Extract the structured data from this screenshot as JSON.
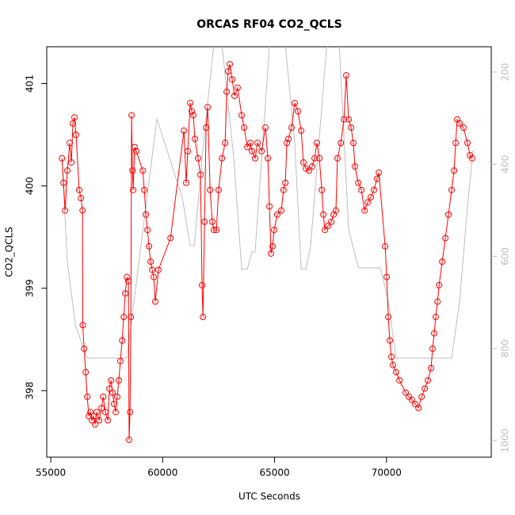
{
  "chart_data": {
    "type": "scatter",
    "title": "ORCAS RF04 CO2_QCLS",
    "xlabel": "UTC Seconds",
    "ylabel": "CO2_QCLS",
    "xlim": [
      54820,
      74680
    ],
    "ylim": [
      397.35,
      401.36
    ],
    "y2lim": [
      1036,
      145
    ],
    "xticks": [
      55000,
      60000,
      65000,
      70000
    ],
    "yticks": [
      398,
      399,
      400,
      401
    ],
    "y2ticks": [
      200,
      400,
      600,
      800,
      1000
    ],
    "series": [
      {
        "color": "#ff0000",
        "axis": "y",
        "x": [
          55500,
          55570,
          55640,
          55740,
          55850,
          55920,
          55990,
          56060,
          56130,
          56270,
          56350,
          56420,
          56430,
          56490,
          56560,
          56630,
          56700,
          56770,
          56840,
          56910,
          56980,
          57050,
          57160,
          57270,
          57340,
          57440,
          57550,
          57620,
          57690,
          57760,
          57830,
          57900,
          57970,
          58040,
          58110,
          58190,
          58260,
          58330,
          58400,
          58470,
          58500,
          58540,
          58580,
          58610,
          58650,
          58680,
          58750,
          58820,
          59110,
          59180,
          59250,
          59320,
          59390,
          59460,
          59530,
          59600,
          59670,
          59810,
          60350,
          60950,
          61050,
          61120,
          61230,
          61300,
          61370,
          61440,
          61580,
          61690,
          61760,
          61800,
          61870,
          61940,
          62010,
          62120,
          62220,
          62290,
          62400,
          62500,
          62650,
          62790,
          62860,
          62930,
          63000,
          63110,
          63210,
          63350,
          63530,
          63640,
          63780,
          63920,
          63990,
          64130,
          64240,
          64420,
          64590,
          64700,
          64770,
          64840,
          64910,
          64980,
          65120,
          65300,
          65400,
          65480,
          65550,
          65620,
          65760,
          65900,
          66040,
          66190,
          66290,
          66400,
          66540,
          66680,
          66790,
          66890,
          67000,
          67110,
          67180,
          67250,
          67390,
          67530,
          67640,
          67740,
          67810,
          67960,
          68100,
          68200,
          68310,
          68420,
          68520,
          68590,
          68740,
          68880,
          69020,
          69160,
          69300,
          69440,
          69580,
          69660,
          69940,
          70010,
          70080,
          70150,
          70220,
          70290,
          70430,
          70580,
          70860,
          71000,
          71140,
          71280,
          71430,
          71570,
          71710,
          71850,
          71990,
          72060,
          72130,
          72200,
          72280,
          72350,
          72490,
          72630,
          72770,
          72910,
          73020,
          73090,
          73160,
          73270,
          73440,
          73620,
          73730,
          73830
        ],
        "values": [
          400.27,
          400.03,
          399.76,
          400.15,
          400.42,
          400.23,
          400.61,
          400.67,
          400.5,
          399.96,
          399.88,
          399.76,
          398.64,
          398.41,
          398.18,
          397.94,
          397.75,
          397.79,
          397.71,
          397.75,
          397.67,
          397.79,
          397.71,
          397.83,
          397.94,
          397.79,
          397.71,
          398.02,
          398.1,
          397.98,
          397.87,
          397.79,
          397.94,
          398.1,
          398.29,
          398.49,
          398.72,
          398.95,
          399.11,
          399.07,
          397.52,
          397.79,
          398.72,
          400.69,
          400.15,
          399.96,
          400.38,
          400.34,
          400.15,
          399.96,
          399.72,
          399.57,
          399.41,
          399.26,
          399.18,
          399.11,
          398.87,
          399.18,
          399.49,
          400.54,
          400.03,
          400.34,
          400.81,
          400.73,
          400.69,
          400.46,
          400.27,
          400.11,
          399.03,
          398.72,
          399.65,
          400.57,
          400.77,
          399.96,
          399.65,
          399.57,
          399.57,
          399.96,
          400.27,
          400.42,
          400.92,
          401.12,
          401.19,
          401.04,
          400.88,
          400.96,
          400.69,
          400.57,
          400.38,
          400.42,
          400.34,
          400.27,
          400.42,
          400.34,
          400.57,
          400.27,
          399.8,
          399.34,
          399.41,
          399.57,
          399.72,
          399.76,
          399.96,
          400.03,
          400.42,
          400.46,
          400.57,
          400.81,
          400.73,
          400.54,
          400.23,
          400.17,
          400.15,
          400.19,
          400.27,
          400.42,
          400.27,
          399.96,
          399.72,
          399.57,
          399.61,
          399.65,
          399.72,
          399.76,
          400.27,
          400.42,
          400.65,
          401.08,
          400.65,
          400.57,
          400.42,
          400.19,
          400.03,
          399.96,
          399.76,
          399.84,
          399.89,
          399.96,
          400.07,
          400.13,
          399.41,
          399.11,
          398.72,
          398.49,
          398.33,
          398.25,
          398.18,
          398.1,
          397.98,
          397.94,
          397.91,
          397.87,
          397.83,
          397.94,
          398.02,
          398.1,
          398.22,
          398.41,
          398.56,
          398.72,
          398.87,
          399.03,
          399.26,
          399.49,
          399.72,
          399.96,
          400.15,
          400.42,
          400.65,
          400.61,
          400.57,
          400.42,
          400.3,
          400.27
        ]
      },
      {
        "color": "#bebebe",
        "axis": "y2",
        "x": [
          55500,
          55740,
          56100,
          56630,
          58400,
          59740,
          60880,
          61230,
          61410,
          61760,
          62010,
          62290,
          62650,
          63180,
          63530,
          63780,
          63990,
          64130,
          64770,
          65050,
          65480,
          65900,
          66190,
          66400,
          66610,
          67320,
          67530,
          67890,
          68310,
          68740,
          69730,
          70080,
          70430,
          72910,
          73270,
          73620,
          73870
        ],
        "values": [
          387.5,
          611,
          749,
          821,
          821,
          301.5,
          473.5,
          577,
          577,
          387.5,
          267,
          140,
          140,
          387.5,
          628,
          628,
          590.5,
          590.5,
          145,
          140,
          140,
          353,
          628,
          628,
          577,
          147,
          140,
          140,
          542,
          625,
          625,
          697,
          821,
          821,
          697,
          491,
          370
        ]
      }
    ]
  }
}
